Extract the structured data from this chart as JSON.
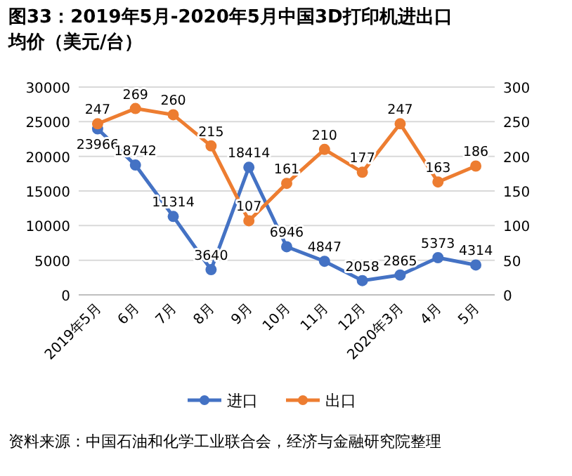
{
  "chart_data": {
    "type": "line",
    "title": "图33：2019年5月-2020年5月中国3D打印机进出口均价（美元/台）",
    "categories": [
      "2019年5月",
      "6月",
      "7月",
      "8月",
      "9月",
      "10月",
      "11月",
      "12月",
      "2020年3月",
      "4月",
      "5月"
    ],
    "series": [
      {
        "name": "进口",
        "color": "#4472c4",
        "values": [
          23966,
          18742,
          11314,
          3640,
          18414,
          6946,
          4847,
          2058,
          2865,
          5373,
          4314
        ]
      },
      {
        "name": "出口",
        "color": "#ed7d31",
        "axis": "y2",
        "values": [
          247,
          269,
          260,
          215,
          107,
          161,
          210,
          177,
          247,
          163,
          186
        ]
      }
    ],
    "ylim": [
      0,
      30000
    ],
    "yticks": [
      0,
      5000,
      10000,
      15000,
      20000,
      25000,
      30000
    ],
    "y2lim": [
      0,
      300
    ],
    "y2ticks": [
      0,
      50,
      100,
      150,
      200,
      250,
      300
    ],
    "grid": "y",
    "legend": "bottom",
    "marker": "circle",
    "line_style": "solid",
    "data_labels": true,
    "annotations": [
      "资料来源：中国石油和化学工业联合会，经济与金融研究院整理"
    ]
  }
}
